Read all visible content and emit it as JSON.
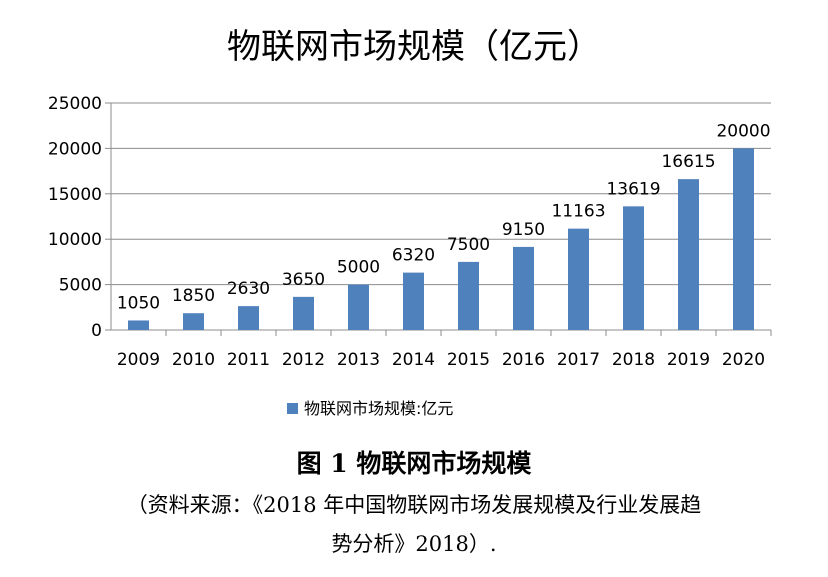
{
  "chart_data": {
    "type": "bar",
    "title": "物联网市场规模（亿元）",
    "categories": [
      "2009",
      "2010",
      "2011",
      "2012",
      "2013",
      "2014",
      "2015",
      "2016",
      "2017",
      "2018",
      "2019",
      "2020"
    ],
    "series": [
      {
        "name": "物联网市场规模:亿元",
        "values": [
          1050,
          1850,
          2630,
          3650,
          5000,
          6320,
          7500,
          9150,
          11163,
          13619,
          16615,
          20000
        ],
        "color": "#4f81bd"
      }
    ],
    "yticks": [
      "0",
      "5000",
      "10000",
      "15000",
      "20000",
      "25000"
    ],
    "ylim": [
      0,
      25000
    ],
    "grid": true,
    "legend_position": "bottom"
  },
  "caption": {
    "figure": "图 1   物联网市场规模",
    "source_line1": "（资料来源：《2018 年中国物联网市场发展规模及行业发展趋",
    "source_line2": "势分析》2018）."
  }
}
